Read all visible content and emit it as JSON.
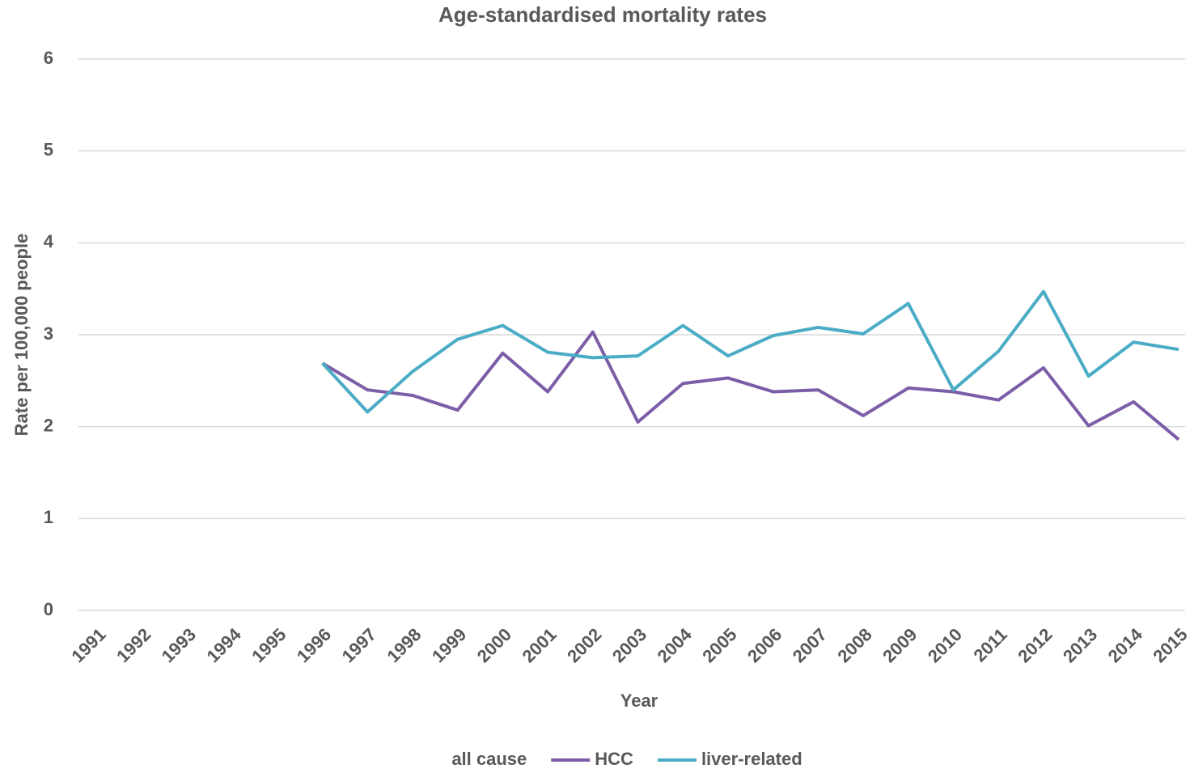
{
  "chart_data": {
    "type": "line",
    "title": "Age-standardised mortality rates",
    "x_label": "Year",
    "y_label": "Rate per 100,000 people",
    "categories": [
      "1991",
      "1992",
      "1993",
      "1994",
      "1995",
      "1996",
      "1997",
      "1998",
      "1999",
      "2000",
      "2001",
      "2002",
      "2003",
      "2004",
      "2005",
      "2006",
      "2007",
      "2008",
      "2009",
      "2010",
      "2011",
      "2012",
      "2013",
      "2014",
      "2015"
    ],
    "series": [
      {
        "name": "all cause",
        "values": [
          null,
          null,
          null,
          null,
          null,
          null,
          null,
          null,
          null,
          null,
          null,
          null,
          null,
          null,
          null,
          null,
          null,
          null,
          null,
          null,
          null,
          null,
          null,
          null,
          null
        ]
      },
      {
        "name": "HCC",
        "color": "#7b5ea7",
        "values": [
          null,
          null,
          null,
          null,
          null,
          2.69,
          2.4,
          2.34,
          2.18,
          2.8,
          2.38,
          3.03,
          2.05,
          2.47,
          2.53,
          2.38,
          2.4,
          2.12,
          2.42,
          2.38,
          2.29,
          2.64,
          2.01,
          2.27,
          1.86
        ]
      },
      {
        "name": "liver-related",
        "color": "#4bacc6",
        "values": [
          null,
          null,
          null,
          null,
          null,
          2.69,
          2.16,
          2.6,
          2.95,
          3.1,
          2.81,
          2.75,
          2.77,
          3.1,
          2.77,
          2.99,
          3.08,
          3.01,
          3.34,
          2.4,
          2.82,
          3.47,
          2.55,
          2.92,
          2.84
        ]
      }
    ],
    "ylim": [
      0,
      6
    ],
    "yticks": [
      0,
      1,
      2,
      3,
      4,
      5,
      6
    ],
    "grid": true,
    "legend": "bottom"
  }
}
